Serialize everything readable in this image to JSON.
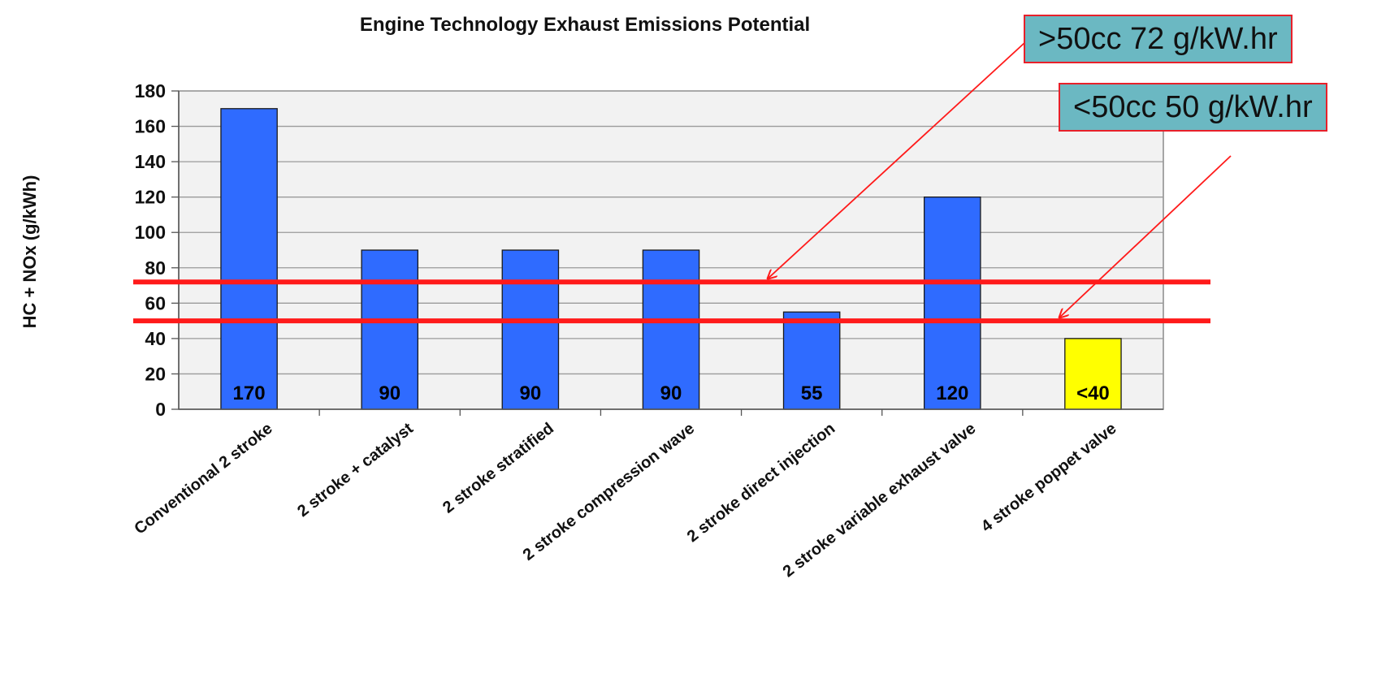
{
  "chart_data": {
    "type": "bar",
    "title": "Engine Technology Exhaust Emissions Potential",
    "xlabel": "",
    "ylabel": "HC + NOx (g/kWh)",
    "ylim": [
      0,
      180
    ],
    "yticks": [
      0,
      20,
      40,
      60,
      80,
      100,
      120,
      140,
      160,
      180
    ],
    "grid": true,
    "categories": [
      "Conventional 2 stroke",
      "2 stroke + catalyst",
      "2 stroke stratified",
      "2 stroke compression wave",
      "2 stroke direct injection",
      "2 stroke variable exhaust valve",
      "4 stroke poppet valve"
    ],
    "values": [
      170,
      90,
      90,
      90,
      55,
      120,
      40
    ],
    "data_labels": [
      "170",
      "90",
      "90",
      "90",
      "55",
      "120",
      "<40"
    ],
    "bar_colors": [
      "#2f6bff",
      "#2f6bff",
      "#2f6bff",
      "#2f6bff",
      "#2f6bff",
      "#2f6bff",
      "#ffff00"
    ],
    "reference_lines": [
      {
        "value": 72,
        "color": "#ff1a1a"
      },
      {
        "value": 50,
        "color": "#ff1a1a"
      }
    ],
    "annotations": [
      {
        "text": ">50cc 72 g/kW.hr",
        "points_to": 72
      },
      {
        "text": "<50cc 50 g/kW.hr",
        "points_to": 50
      }
    ]
  },
  "colors": {
    "bar": "#2f6bff",
    "highlight_bar": "#ffff00",
    "limit_line": "#ff1a1a",
    "annotation_fill": "#6bb8c2",
    "annotation_border": "#e8202a",
    "plot_bg": "#f2f2f2",
    "grid": "#9a9a9a"
  }
}
